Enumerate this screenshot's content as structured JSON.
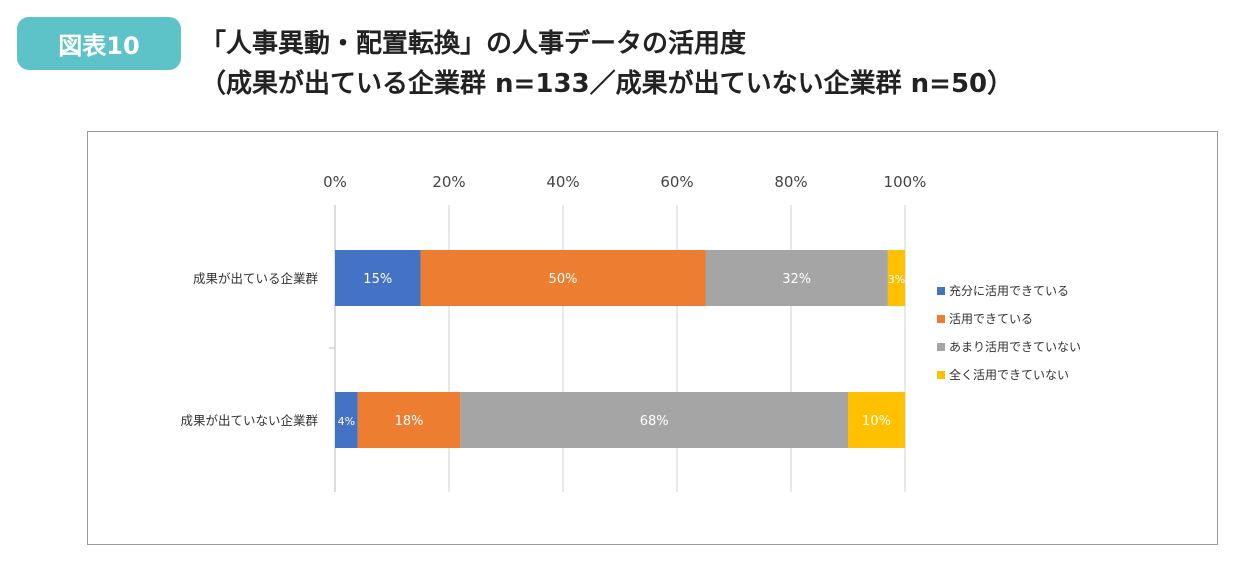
{
  "badge": "図表10",
  "title": {
    "line1": "「人事異動・配置転換」の人事データの活用度",
    "line2": "（成果が出ている企業群 n=133／成果が出ていない企業群 n=50）"
  },
  "chart_data": {
    "type": "bar",
    "stacked": true,
    "orientation": "horizontal",
    "percent": true,
    "categories": [
      "成果が出ている企業群",
      "成果が出ていない企業群"
    ],
    "series": [
      {
        "name": "充分に活用できている",
        "color": "#4472c4",
        "values": [
          15,
          4
        ]
      },
      {
        "name": "活用できている",
        "color": "#ed7d31",
        "values": [
          50,
          18
        ]
      },
      {
        "name": "あまり活用できていない",
        "color": "#a5a5a5",
        "values": [
          32,
          68
        ]
      },
      {
        "name": "全く活用できていない",
        "color": "#ffc000",
        "values": [
          3,
          10
        ]
      }
    ],
    "xticks": [
      "0%",
      "20%",
      "40%",
      "60%",
      "80%",
      "100%"
    ],
    "xlim": [
      0,
      100
    ],
    "grid": true,
    "legend": "right"
  }
}
